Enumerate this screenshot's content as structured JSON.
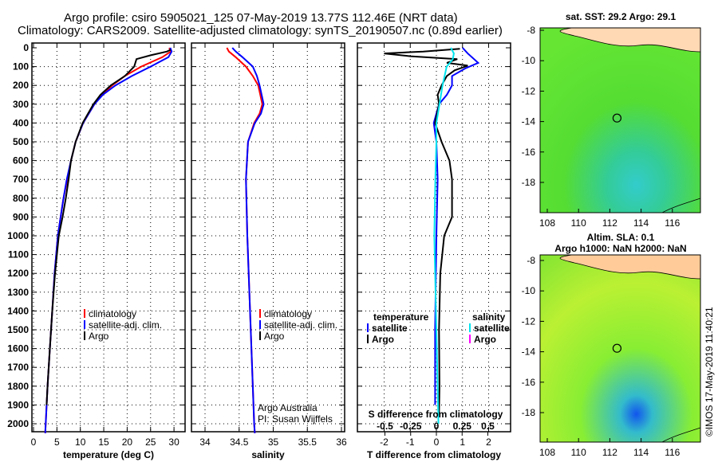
{
  "title_line1": "Argo profile: csiro 5905021_125 07-May-2019 13.77S 112.46E (NRT data)",
  "title_line2": "Climatology: CARS2009. Satellite-adjusted climatology: synTS_20190507.nc (0.89d earlier)",
  "credit": "©IMOS 17-May-2019 11:40:21",
  "colors": {
    "climatology": "#ff0000",
    "satellite": "#0000ff",
    "argo": "#000000",
    "sal_satellite": "#00e5ee",
    "sal_argo": "#ff00ff"
  },
  "chart_data": [
    {
      "type": "line",
      "xlabel": "temperature (deg C)",
      "ylabel": "",
      "xlim": [
        -1,
        31
      ],
      "ylim": [
        2050,
        0
      ],
      "xticks": [
        "0",
        "5",
        "10",
        "15",
        "20",
        "25",
        "30"
      ],
      "xtick_values": [
        0,
        5,
        10,
        15,
        20,
        25,
        30
      ],
      "yticks": [
        "0",
        "100",
        "200",
        "300",
        "400",
        "500",
        "600",
        "700",
        "800",
        "900",
        "1000",
        "1100",
        "1200",
        "1300",
        "1400",
        "1500",
        "1600",
        "1700",
        "1800",
        "1900",
        "2000"
      ],
      "legend": [
        "climatology",
        "satellite-adj. clim.",
        "Argo"
      ],
      "series": [
        {
          "name": "climatology",
          "color": "#ff0000",
          "depth": [
            0,
            20,
            50,
            100,
            150,
            200,
            250,
            300,
            400,
            500,
            600,
            700,
            800,
            900,
            1000,
            1200,
            1400,
            1600,
            1800,
            2000,
            2050
          ],
          "values": [
            29,
            29.3,
            27.5,
            23,
            19.5,
            16.8,
            14.6,
            13,
            10.6,
            9,
            8,
            7.2,
            6.4,
            5.8,
            5.2,
            4.5,
            4,
            3.5,
            3,
            2.6,
            2.5
          ]
        },
        {
          "name": "satellite-adj. clim.",
          "color": "#0000ff",
          "depth": [
            0,
            20,
            50,
            100,
            150,
            200,
            250,
            300,
            400,
            500,
            600,
            700,
            800,
            900,
            1000,
            1200,
            1400,
            1600,
            1800,
            2000,
            2050
          ],
          "values": [
            29.2,
            29.5,
            28.8,
            25,
            21,
            17.5,
            14.8,
            13,
            10.6,
            9,
            8,
            7.1,
            6.4,
            5.8,
            5.2,
            4.5,
            4,
            3.5,
            3,
            2.6,
            2.5
          ]
        },
        {
          "name": "Argo",
          "color": "#000000",
          "depth": [
            10,
            20,
            40,
            60,
            100,
            150,
            200,
            250,
            300,
            400,
            500,
            600,
            700,
            800,
            900,
            1000,
            1200,
            1400,
            1600,
            1800,
            1900
          ],
          "values": [
            29.3,
            28.5,
            25,
            22,
            21.5,
            19.5,
            16.5,
            14.3,
            12.8,
            10.5,
            9,
            8,
            7.5,
            6.9,
            6.2,
            5.4,
            4.6,
            4,
            3.5,
            3,
            2.8
          ]
        }
      ]
    },
    {
      "type": "line",
      "xlabel": "salinity",
      "xlim": [
        33.9,
        36.1
      ],
      "ylim": [
        2050,
        0
      ],
      "xticks": [
        "34",
        "34.5",
        "35",
        "35.5",
        "36"
      ],
      "xtick_values": [
        34,
        34.5,
        35,
        35.5,
        36
      ],
      "legend": [
        "climatology",
        "satellite-adj. clim.",
        "Argo"
      ],
      "annotation": [
        "Argo Australia",
        "PI: Susan Wijffels"
      ],
      "series": [
        {
          "name": "climatology",
          "color": "#ff0000",
          "depth": [
            0,
            20,
            50,
            100,
            150,
            200,
            300,
            350,
            400,
            500,
            700,
            1000,
            1500,
            2000,
            2050
          ],
          "values": [
            34.32,
            34.35,
            34.45,
            34.6,
            34.7,
            34.78,
            34.84,
            34.8,
            34.72,
            34.63,
            34.6,
            34.62,
            34.67,
            34.72,
            34.73
          ]
        },
        {
          "name": "satellite-adj. clim.",
          "color": "#0000ff",
          "depth": [
            0,
            20,
            50,
            100,
            150,
            200,
            300,
            350,
            400,
            500,
            700,
            1000,
            1500,
            2000,
            2050
          ],
          "values": [
            34.4,
            34.45,
            34.55,
            34.7,
            34.76,
            34.8,
            34.86,
            34.82,
            34.73,
            34.63,
            34.6,
            34.62,
            34.67,
            34.72,
            34.73
          ]
        }
      ]
    },
    {
      "type": "line",
      "xlabel": "T difference from climatology",
      "xlim": [
        -3,
        3
      ],
      "ylim": [
        2050,
        0
      ],
      "xticks": [
        "-2",
        "-1",
        "0",
        "1",
        "2"
      ],
      "xtick_values": [
        -2,
        -1,
        0,
        1,
        2
      ],
      "secondary_xlabel": "S difference from climatology",
      "secondary_xticks": [
        "-0.5",
        "-0.25",
        "0",
        "0.25",
        "0.5"
      ],
      "secondary_xtick_values": [
        -0.5,
        -0.25,
        0,
        0.25,
        0.5
      ],
      "legend_temperature": {
        "title": "temperature",
        "items": [
          "satellite",
          "Argo"
        ]
      },
      "legend_salinity": {
        "title": "salinity",
        "items": [
          "satellite",
          "Argo"
        ]
      },
      "series": [
        {
          "name": "T satellite",
          "color": "#0000ff",
          "depth": [
            0,
            30,
            80,
            110,
            150,
            200,
            250,
            300,
            400,
            500,
            700,
            1000,
            1500,
            1900
          ],
          "values": [
            1,
            1.2,
            1.6,
            1.1,
            0.6,
            0.6,
            0.4,
            0.1,
            -0.1,
            0,
            0.05,
            0,
            -0.05,
            -0.05
          ]
        },
        {
          "name": "T Argo",
          "color": "#000000",
          "depth": [
            5,
            20,
            30,
            45,
            60,
            80,
            95,
            120,
            150,
            200,
            250,
            300,
            400,
            500,
            600,
            700,
            800,
            900,
            1000,
            1200,
            1500,
            1800,
            1950
          ],
          "values": [
            0.9,
            -0.5,
            -2,
            -1,
            0.8,
            0.4,
            1.2,
            0.7,
            0.4,
            0.2,
            0.05,
            0.1,
            -0.05,
            0.2,
            0.5,
            0.6,
            0.6,
            0.6,
            0.3,
            0.15,
            0.1,
            0.12,
            0.1
          ]
        },
        {
          "name": "S satellite",
          "color": "#00e5ee",
          "depth": [
            0,
            30,
            60,
            100,
            200,
            300,
            400,
            500,
            700,
            1000,
            1500,
            2000
          ],
          "values": [
            0.14,
            0.17,
            0.16,
            0.1,
            0.06,
            0.03,
            0.0,
            0.0,
            -0.01,
            -0.02,
            0.0,
            0.02
          ]
        }
      ]
    },
    {
      "type": "heatmap",
      "title": "sat. SST: 29.2 Argo: 29.1",
      "xticks": [
        "108",
        "110",
        "112",
        "114",
        "116"
      ],
      "xtick_values": [
        108,
        110,
        112,
        114,
        116
      ],
      "yticks": [
        "-8",
        "-10",
        "-12",
        "-14",
        "-16",
        "-18"
      ],
      "ytick_values": [
        -8,
        -10,
        -12,
        -14,
        -16,
        -18
      ],
      "profile_location": [
        112.46,
        -13.77
      ]
    },
    {
      "type": "heatmap",
      "title": "Altim. SLA: 0.1",
      "subtitle": "Argo h1000: NaN h2000: NaN",
      "xticks": [
        "108",
        "110",
        "112",
        "114",
        "116"
      ],
      "xtick_values": [
        108,
        110,
        112,
        114,
        116
      ],
      "yticks": [
        "-8",
        "-10",
        "-12",
        "-14",
        "-16",
        "-18"
      ],
      "ytick_values": [
        -8,
        -10,
        -12,
        -14,
        -16,
        -18
      ],
      "profile_location": [
        112.46,
        -13.77
      ]
    }
  ]
}
